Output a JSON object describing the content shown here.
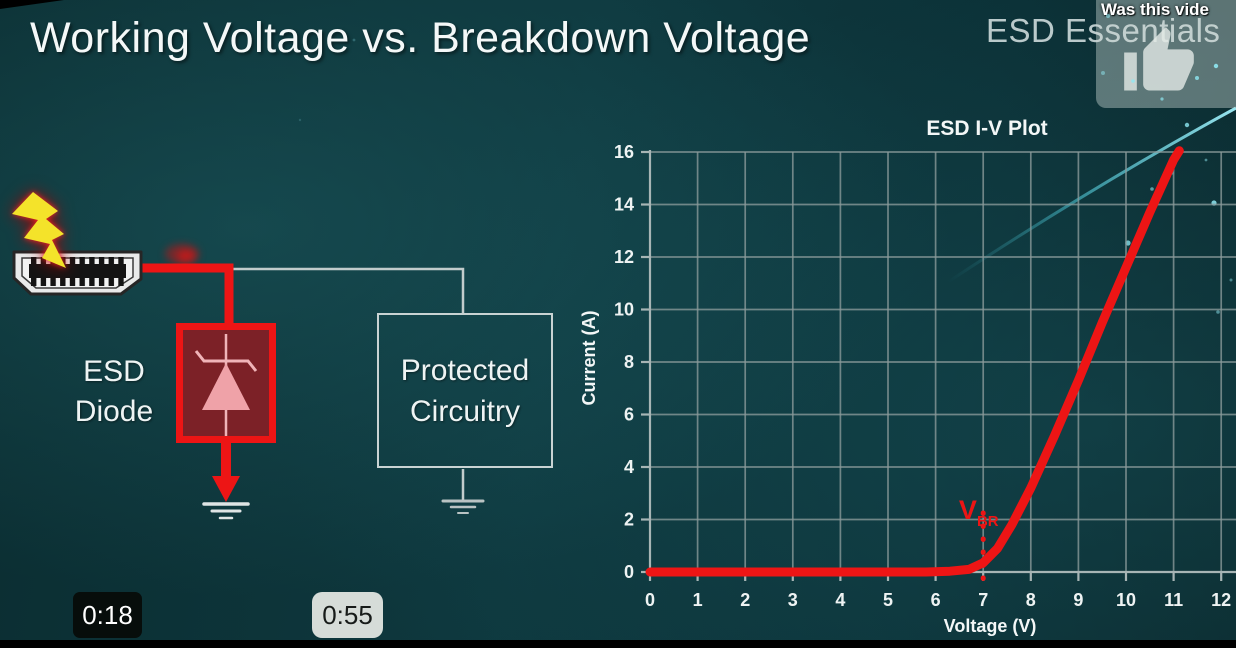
{
  "video_overlay": {
    "feedback_prompt": "Was this vide",
    "timestamps": [
      "0:18",
      "0:55"
    ]
  },
  "slide": {
    "title": "Working Voltage vs. Breakdown Voltage",
    "watermark": "ESD Essentials",
    "diagram": {
      "esd_label_line1": "ESD",
      "esd_label_line2": "Diode",
      "protected_label_line1": "Protected",
      "protected_label_line2": "Circuitry"
    }
  },
  "chart_data": {
    "type": "line",
    "title": "ESD I-V Plot",
    "xlabel": "Voltage (V)",
    "ylabel": "Current (A)",
    "xlim": [
      0,
      12.35
    ],
    "ylim": [
      0,
      16
    ],
    "x_ticks": [
      0,
      1,
      2,
      3,
      4,
      5,
      6,
      7,
      8,
      9,
      10,
      11,
      12
    ],
    "y_ticks": [
      0,
      2,
      4,
      6,
      8,
      10,
      12,
      14,
      16
    ],
    "grid": true,
    "legend": false,
    "series": [
      {
        "name": "ESD diode I-V curve",
        "color": "#ed1515",
        "points": [
          [
            0,
            0
          ],
          [
            5.8,
            0
          ],
          [
            6.3,
            0.03
          ],
          [
            6.7,
            0.1
          ],
          [
            7.0,
            0.35
          ],
          [
            7.3,
            0.9
          ],
          [
            7.6,
            1.8
          ],
          [
            8.0,
            3.2
          ],
          [
            8.5,
            5.2
          ],
          [
            9.0,
            7.3
          ],
          [
            9.5,
            9.5
          ],
          [
            10.0,
            11.6
          ],
          [
            10.5,
            13.7
          ],
          [
            11.0,
            15.7
          ],
          [
            11.12,
            16.05
          ]
        ]
      }
    ],
    "annotation": {
      "label_main": "V",
      "label_sub": "BR",
      "x": 7,
      "dotted_y_range": [
        -0.4,
        2.25
      ],
      "label_pos": [
        6.49,
        2.86
      ],
      "color": "#ed1515"
    }
  },
  "colors": {
    "background_teal": "#0d3338",
    "accent_red": "#ed1515",
    "diode_fill": "#7c2127",
    "bolt_yellow": "#f4e32a",
    "swoosh_cyan": "#69d8e8",
    "grid_gray": "#8b9b9b",
    "text_white": "#f2f6f6"
  }
}
